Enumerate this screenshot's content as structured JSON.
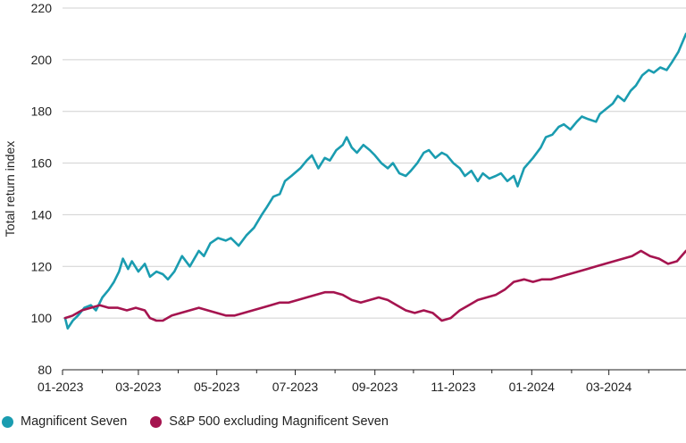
{
  "chart_data": {
    "type": "line",
    "title": "",
    "xlabel": "",
    "ylabel": "Total return index",
    "ylim": [
      80,
      220
    ],
    "yticks": [
      80,
      100,
      120,
      140,
      160,
      180,
      200,
      220
    ],
    "xticks": [
      "01-2023",
      "03-2023",
      "05-2023",
      "07-2023",
      "09-2023",
      "11-2023",
      "01-2024",
      "03-2024"
    ],
    "xrange": [
      "2023-01-01",
      "2024-04-30"
    ],
    "grid": "horizontal",
    "legend_position": "bottom-left",
    "series": [
      {
        "name": "Magnificent Seven",
        "color": "#1A9CB0",
        "points": [
          [
            "2023-01-03",
            100
          ],
          [
            "2023-01-05",
            96
          ],
          [
            "2023-01-09",
            99
          ],
          [
            "2023-01-13",
            101
          ],
          [
            "2023-01-18",
            104
          ],
          [
            "2023-01-23",
            105
          ],
          [
            "2023-01-27",
            103
          ],
          [
            "2023-02-01",
            108
          ],
          [
            "2023-02-06",
            111
          ],
          [
            "2023-02-10",
            114
          ],
          [
            "2023-02-14",
            118
          ],
          [
            "2023-02-17",
            123
          ],
          [
            "2023-02-21",
            119
          ],
          [
            "2023-02-24",
            122
          ],
          [
            "2023-03-01",
            118
          ],
          [
            "2023-03-06",
            121
          ],
          [
            "2023-03-10",
            116
          ],
          [
            "2023-03-15",
            118
          ],
          [
            "2023-03-20",
            117
          ],
          [
            "2023-03-24",
            115
          ],
          [
            "2023-03-29",
            118
          ],
          [
            "2023-04-04",
            124
          ],
          [
            "2023-04-10",
            120
          ],
          [
            "2023-04-17",
            126
          ],
          [
            "2023-04-21",
            124
          ],
          [
            "2023-04-26",
            129
          ],
          [
            "2023-05-02",
            131
          ],
          [
            "2023-05-08",
            130
          ],
          [
            "2023-05-12",
            131
          ],
          [
            "2023-05-18",
            128
          ],
          [
            "2023-05-24",
            132
          ],
          [
            "2023-05-30",
            135
          ],
          [
            "2023-06-05",
            140
          ],
          [
            "2023-06-09",
            143
          ],
          [
            "2023-06-14",
            147
          ],
          [
            "2023-06-19",
            148
          ],
          [
            "2023-06-23",
            153
          ],
          [
            "2023-06-28",
            155
          ],
          [
            "2023-07-05",
            158
          ],
          [
            "2023-07-10",
            161
          ],
          [
            "2023-07-14",
            163
          ],
          [
            "2023-07-19",
            158
          ],
          [
            "2023-07-24",
            162
          ],
          [
            "2023-07-28",
            161
          ],
          [
            "2023-08-02",
            165
          ],
          [
            "2023-08-07",
            167
          ],
          [
            "2023-08-10",
            170
          ],
          [
            "2023-08-14",
            166
          ],
          [
            "2023-08-18",
            164
          ],
          [
            "2023-08-23",
            167
          ],
          [
            "2023-08-28",
            165
          ],
          [
            "2023-09-01",
            163
          ],
          [
            "2023-09-06",
            160
          ],
          [
            "2023-09-11",
            158
          ],
          [
            "2023-09-15",
            160
          ],
          [
            "2023-09-20",
            156
          ],
          [
            "2023-09-25",
            155
          ],
          [
            "2023-09-29",
            157
          ],
          [
            "2023-10-04",
            160
          ],
          [
            "2023-10-09",
            164
          ],
          [
            "2023-10-13",
            165
          ],
          [
            "2023-10-18",
            162
          ],
          [
            "2023-10-23",
            164
          ],
          [
            "2023-10-27",
            163
          ],
          [
            "2023-11-01",
            160
          ],
          [
            "2023-11-06",
            158
          ],
          [
            "2023-11-10",
            155
          ],
          [
            "2023-11-15",
            157
          ],
          [
            "2023-11-20",
            153
          ],
          [
            "2023-11-24",
            156
          ],
          [
            "2023-11-29",
            154
          ],
          [
            "2023-12-04",
            155
          ],
          [
            "2023-12-08",
            156
          ],
          [
            "2023-12-13",
            153
          ],
          [
            "2023-12-18",
            155
          ],
          [
            "2023-12-21",
            151
          ],
          [
            "2023-12-26",
            158
          ],
          [
            "2024-01-02",
            162
          ],
          [
            "2024-01-08",
            166
          ],
          [
            "2024-01-12",
            170
          ],
          [
            "2024-01-17",
            171
          ],
          [
            "2024-01-22",
            174
          ],
          [
            "2024-01-26",
            175
          ],
          [
            "2024-01-31",
            173
          ],
          [
            "2024-02-05",
            176
          ],
          [
            "2024-02-09",
            178
          ],
          [
            "2024-02-14",
            177
          ],
          [
            "2024-02-20",
            176
          ],
          [
            "2024-02-23",
            179
          ],
          [
            "2024-02-28",
            181
          ],
          [
            "2024-03-04",
            183
          ],
          [
            "2024-03-08",
            186
          ],
          [
            "2024-03-13",
            184
          ],
          [
            "2024-03-18",
            188
          ],
          [
            "2024-03-22",
            190
          ],
          [
            "2024-03-27",
            194
          ],
          [
            "2024-04-01",
            196
          ],
          [
            "2024-04-05",
            195
          ],
          [
            "2024-04-10",
            197
          ],
          [
            "2024-04-15",
            196
          ],
          [
            "2024-04-19",
            199
          ],
          [
            "2024-04-24",
            203
          ],
          [
            "2024-04-30",
            210
          ]
        ]
      },
      {
        "name": "S&P 500 excluding Magnificent Seven",
        "color": "#A5144F",
        "points": [
          [
            "2023-01-03",
            100
          ],
          [
            "2023-01-09",
            101
          ],
          [
            "2023-01-16",
            103
          ],
          [
            "2023-01-23",
            104
          ],
          [
            "2023-01-30",
            105
          ],
          [
            "2023-02-06",
            104
          ],
          [
            "2023-02-13",
            104
          ],
          [
            "2023-02-20",
            103
          ],
          [
            "2023-02-27",
            104
          ],
          [
            "2023-03-06",
            103
          ],
          [
            "2023-03-10",
            100
          ],
          [
            "2023-03-15",
            99
          ],
          [
            "2023-03-20",
            99
          ],
          [
            "2023-03-27",
            101
          ],
          [
            "2023-04-03",
            102
          ],
          [
            "2023-04-10",
            103
          ],
          [
            "2023-04-17",
            104
          ],
          [
            "2023-04-24",
            103
          ],
          [
            "2023-05-01",
            102
          ],
          [
            "2023-05-08",
            101
          ],
          [
            "2023-05-15",
            101
          ],
          [
            "2023-05-22",
            102
          ],
          [
            "2023-05-29",
            103
          ],
          [
            "2023-06-05",
            104
          ],
          [
            "2023-06-12",
            105
          ],
          [
            "2023-06-19",
            106
          ],
          [
            "2023-06-26",
            106
          ],
          [
            "2023-07-03",
            107
          ],
          [
            "2023-07-10",
            108
          ],
          [
            "2023-07-17",
            109
          ],
          [
            "2023-07-24",
            110
          ],
          [
            "2023-07-31",
            110
          ],
          [
            "2023-08-07",
            109
          ],
          [
            "2023-08-14",
            107
          ],
          [
            "2023-08-21",
            106
          ],
          [
            "2023-08-28",
            107
          ],
          [
            "2023-09-04",
            108
          ],
          [
            "2023-09-11",
            107
          ],
          [
            "2023-09-18",
            105
          ],
          [
            "2023-09-25",
            103
          ],
          [
            "2023-10-02",
            102
          ],
          [
            "2023-10-09",
            103
          ],
          [
            "2023-10-16",
            102
          ],
          [
            "2023-10-23",
            99
          ],
          [
            "2023-10-30",
            100
          ],
          [
            "2023-11-06",
            103
          ],
          [
            "2023-11-13",
            105
          ],
          [
            "2023-11-20",
            107
          ],
          [
            "2023-11-27",
            108
          ],
          [
            "2023-12-04",
            109
          ],
          [
            "2023-12-11",
            111
          ],
          [
            "2023-12-18",
            114
          ],
          [
            "2023-12-26",
            115
          ],
          [
            "2024-01-02",
            114
          ],
          [
            "2024-01-09",
            115
          ],
          [
            "2024-01-16",
            115
          ],
          [
            "2024-01-23",
            116
          ],
          [
            "2024-01-30",
            117
          ],
          [
            "2024-02-06",
            118
          ],
          [
            "2024-02-13",
            119
          ],
          [
            "2024-02-20",
            120
          ],
          [
            "2024-02-27",
            121
          ],
          [
            "2024-03-05",
            122
          ],
          [
            "2024-03-12",
            123
          ],
          [
            "2024-03-19",
            124
          ],
          [
            "2024-03-26",
            126
          ],
          [
            "2024-04-02",
            124
          ],
          [
            "2024-04-09",
            123
          ],
          [
            "2024-04-16",
            121
          ],
          [
            "2024-04-23",
            122
          ],
          [
            "2024-04-30",
            126
          ]
        ]
      }
    ]
  }
}
